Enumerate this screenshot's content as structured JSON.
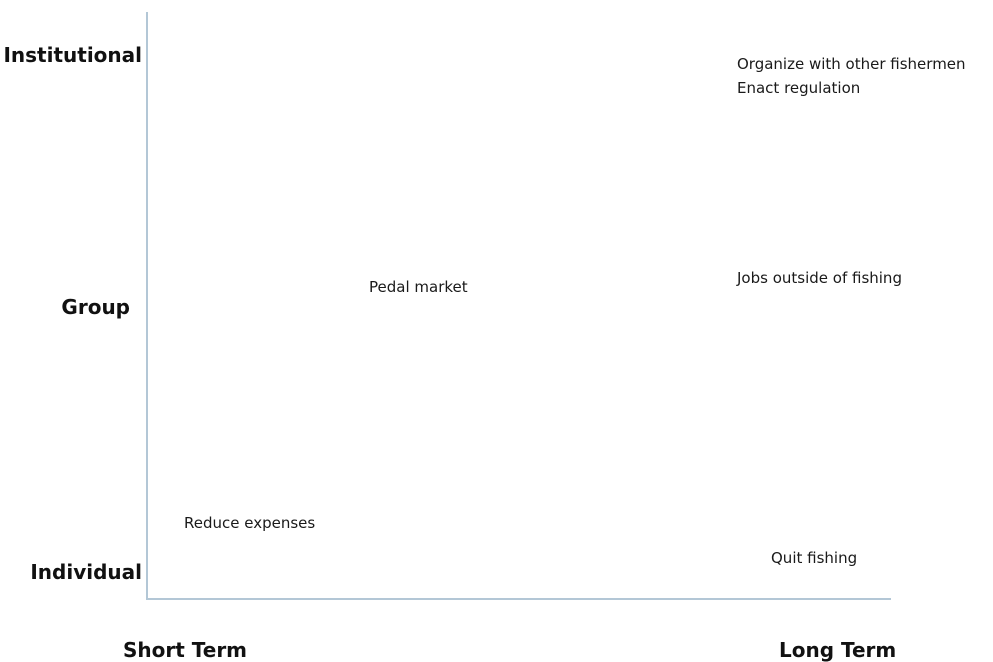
{
  "axes": {
    "y_levels": [
      "Institutional",
      "Group",
      "Individual"
    ],
    "x_levels": [
      "Short Term",
      "Long Term"
    ],
    "line_color": "#b3c7d6"
  },
  "items": {
    "organize": "Organize with other fishermen",
    "regulation": "Enact regulation",
    "jobs": "Jobs outside of fishing",
    "pedal": "Pedal market",
    "reduce": "Reduce expenses",
    "quit": "Quit fishing"
  }
}
